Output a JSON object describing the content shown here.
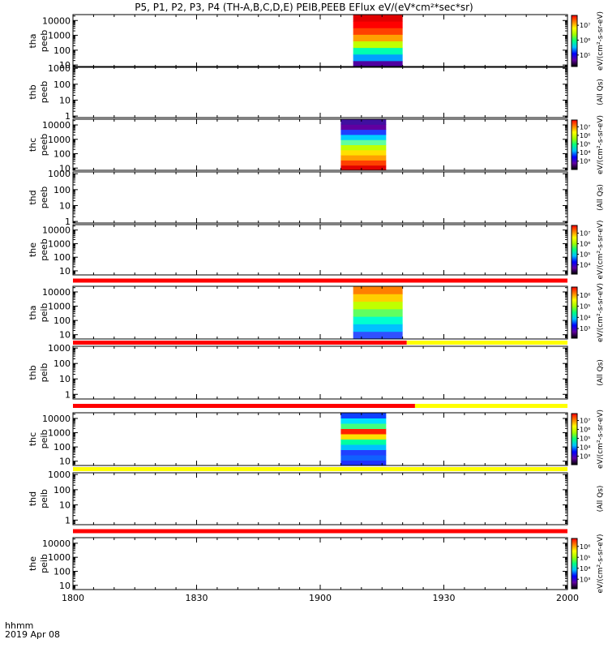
{
  "title": "P5, P1, P2, P3, P4 (TH-A,B,C,D,E) PEIB,PEEB EFlux eV/(eV*cm²*sec*sr)",
  "bottom": {
    "x_label": "hhmm",
    "date_label": "2019 Apr 08",
    "x_ticks": [
      "1800",
      "1830",
      "1900",
      "1930",
      "2000"
    ]
  },
  "chart_data": [
    {
      "type": "heatmap",
      "probe": "tha",
      "product": "peeb",
      "ylog": true,
      "ylim": [
        7,
        25000
      ],
      "y_ticks": [
        "10",
        "100",
        "1000",
        "10000"
      ],
      "x_range_hhmm": [
        "1800",
        "2000"
      ],
      "data_segments": [
        {
          "start": "1908",
          "end": "1920",
          "bands_bottom_to_top": [
            "#5000a0",
            "#00a0ff",
            "#00ffb0",
            "#c0ff00",
            "#ffa000",
            "#ff4000",
            "#ff0000",
            "#e00000"
          ]
        }
      ],
      "colorbar": {
        "ticks": [
          "10⁵",
          "10⁶",
          "10⁷"
        ],
        "label": "eV/(cm²-s-sr-eV)"
      }
    },
    {
      "type": "heatmap",
      "probe": "thb",
      "product": "peeb",
      "ylog": true,
      "ylim": [
        0.8,
        1300
      ],
      "y_ticks": [
        "1",
        "10",
        "100",
        "1000"
      ],
      "x_range_hhmm": [
        "1800",
        "2000"
      ],
      "data_segments": [],
      "colorbar": null,
      "side_label": "(All Qs)"
    },
    {
      "type": "heatmap",
      "probe": "thc",
      "product": "peeb",
      "ylog": true,
      "ylim": [
        7,
        25000
      ],
      "y_ticks": [
        "10",
        "100",
        "1000",
        "10000"
      ],
      "x_range_hhmm": [
        "1800",
        "2000"
      ],
      "data_segments": [
        {
          "start": "1905",
          "end": "1916",
          "bands_bottom_to_top": [
            "#e00000",
            "#ff4000",
            "#ffa000",
            "#ffe000",
            "#c0ff00",
            "#60ffa0",
            "#00d0ff",
            "#2040ff",
            "#6000a0",
            "#4010a0"
          ]
        }
      ],
      "colorbar": {
        "ticks": [
          "10³",
          "10⁴",
          "10⁵",
          "10⁶",
          "10⁷"
        ],
        "label": "eV/(cm²-s-sr-eV)"
      }
    },
    {
      "type": "heatmap",
      "probe": "thd",
      "product": "peeb",
      "ylog": true,
      "ylim": [
        0.8,
        1300
      ],
      "y_ticks": [
        "1",
        "10",
        "100",
        "1000"
      ],
      "x_range_hhmm": [
        "1800",
        "2000"
      ],
      "data_segments": [],
      "colorbar": null,
      "side_label": "(All Qs)"
    },
    {
      "type": "heatmap",
      "probe": "the",
      "product": "peeb",
      "ylog": true,
      "ylim": [
        5,
        25000
      ],
      "y_ticks": [
        "10",
        "100",
        "1000",
        "10000"
      ],
      "x_range_hhmm": [
        "1800",
        "2000"
      ],
      "data_segments": [],
      "colorbar": {
        "ticks": [
          "10⁴",
          "10⁵",
          "10⁶",
          "10⁷"
        ],
        "label": "eV/(cm²-s-sr-eV)"
      },
      "flag_bar_below": [
        {
          "start": "1800",
          "end": "2000",
          "color": "#ff0000"
        }
      ]
    },
    {
      "type": "heatmap",
      "probe": "tha",
      "product": "peib",
      "ylog": true,
      "ylim": [
        5,
        25000
      ],
      "y_ticks": [
        "10",
        "100",
        "1000",
        "10000"
      ],
      "x_range_hhmm": [
        "1800",
        "2000"
      ],
      "data_segments": [
        {
          "start": "1908",
          "end": "1920",
          "bands_bottom_to_top": [
            "#3050ff",
            "#00c0ff",
            "#00ffd0",
            "#60ff60",
            "#c0ff00",
            "#ffd000",
            "#ff8000"
          ]
        }
      ],
      "colorbar": {
        "ticks": [
          "10³",
          "10⁴",
          "10⁵",
          "10⁶"
        ],
        "label": "eV/(cm²-s-sr-eV)"
      },
      "flag_bar_below": [
        {
          "start": "1800",
          "end": "1921",
          "color": "#ff0000"
        },
        {
          "start": "1921",
          "end": "2000",
          "color": "#ffff00"
        }
      ]
    },
    {
      "type": "heatmap",
      "probe": "thb",
      "product": "peib",
      "ylog": true,
      "ylim": [
        0.5,
        1300
      ],
      "y_ticks": [
        "1",
        "10",
        "100",
        "1000"
      ],
      "x_range_hhmm": [
        "1800",
        "2000"
      ],
      "data_segments": [],
      "colorbar": null,
      "side_label": "(All Qs)",
      "flag_bar_below": [
        {
          "start": "1800",
          "end": "1923",
          "color": "#ff0000"
        },
        {
          "start": "1923",
          "end": "2000",
          "color": "#ffff00"
        }
      ]
    },
    {
      "type": "heatmap",
      "probe": "thc",
      "product": "peib",
      "ylog": true,
      "ylim": [
        5,
        25000
      ],
      "y_ticks": [
        "10",
        "100",
        "1000",
        "10000"
      ],
      "x_range_hhmm": [
        "1800",
        "2000"
      ],
      "data_segments": [
        {
          "start": "1905",
          "end": "1916",
          "bands_bottom_to_top": [
            "#2030ff",
            "#1060ff",
            "#2040ff",
            "#00c0ff",
            "#00ffa0",
            "#ffe000",
            "#ff2000",
            "#40ff80",
            "#00e0ff",
            "#1040ff"
          ]
        }
      ],
      "colorbar": {
        "ticks": [
          "10³",
          "10⁴",
          "10⁵",
          "10⁶",
          "10⁷"
        ],
        "label": "eV/(cm²-s-sr-eV)"
      },
      "flag_bar_below": [
        {
          "start": "1800",
          "end": "2000",
          "color": "#ffff00"
        }
      ]
    },
    {
      "type": "heatmap",
      "probe": "thd",
      "product": "peib",
      "ylog": true,
      "ylim": [
        0.5,
        1300
      ],
      "y_ticks": [
        "1",
        "10",
        "100",
        "1000"
      ],
      "x_range_hhmm": [
        "1800",
        "2000"
      ],
      "data_segments": [],
      "colorbar": null,
      "side_label": "(All Qs)",
      "flag_bar_below": [
        {
          "start": "1800",
          "end": "2000",
          "color": "#ff0000"
        }
      ]
    },
    {
      "type": "heatmap",
      "probe": "the",
      "product": "peib",
      "ylog": true,
      "ylim": [
        5,
        25000
      ],
      "y_ticks": [
        "10",
        "100",
        "1000",
        "10000"
      ],
      "x_range_hhmm": [
        "1800",
        "2000"
      ],
      "data_segments": [],
      "colorbar": {
        "ticks": [
          "10³",
          "10⁴",
          "10⁵",
          "10⁶"
        ],
        "label": "eV/(cm²-s-sr-eV)"
      }
    }
  ],
  "colors": {
    "axes": "#000000",
    "colorbar_stops": [
      "#000000",
      "#6000a0",
      "#0000ff",
      "#00c0ff",
      "#00ff80",
      "#a0ff00",
      "#ffff00",
      "#ff8000",
      "#ff0000"
    ]
  }
}
